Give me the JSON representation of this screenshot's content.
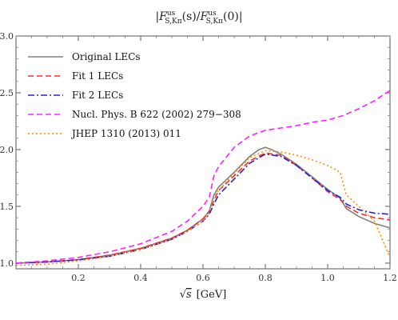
{
  "chart_data": {
    "type": "line",
    "title": "|F^us_{S,Kπ}(s)/F^us_{S,Kπ}(0)|",
    "title_parts": {
      "abs_open": "|",
      "f1_base": "F",
      "f1_sup": "us",
      "f1_sub": "S,Kπ",
      "f1_arg": "(s)/",
      "f2_base": "F",
      "f2_sup": "us",
      "f2_sub": "S,Kπ",
      "f2_arg": "(0)",
      "abs_close": "|"
    },
    "xlabel": "√s [GeV]",
    "xlabel_parts": {
      "sqrt": "√",
      "s": "s",
      "unit": "[GeV]"
    },
    "ylabel": "",
    "xlim": [
      0.0,
      1.2
    ],
    "ylim": [
      0.95,
      3.0
    ],
    "x_ticks": [
      "0.2",
      "0.4",
      "0.6",
      "0.8",
      "1.0",
      "1.2"
    ],
    "y_ticks": [
      "1.0",
      "1.5",
      "2.0",
      "2.5",
      "3.0"
    ],
    "grid": false,
    "legend_position": "top-left",
    "series": [
      {
        "name": "Original LECs",
        "color": "#808080",
        "dash": "solid",
        "x": [
          0.0,
          0.1,
          0.2,
          0.3,
          0.4,
          0.5,
          0.55,
          0.6,
          0.62,
          0.635,
          0.65,
          0.7,
          0.75,
          0.78,
          0.8,
          0.82,
          0.85,
          0.9,
          0.95,
          1.0,
          1.04,
          1.06,
          1.1,
          1.15,
          1.2
        ],
        "y": [
          1.0,
          1.01,
          1.03,
          1.07,
          1.13,
          1.22,
          1.29,
          1.39,
          1.46,
          1.6,
          1.67,
          1.8,
          1.94,
          2.0,
          2.02,
          2.0,
          1.96,
          1.87,
          1.76,
          1.65,
          1.57,
          1.48,
          1.41,
          1.35,
          1.31
        ]
      },
      {
        "name": "Fit 1 LECs",
        "color": "#ff2a2a",
        "dash": "dashed",
        "x": [
          0.0,
          0.1,
          0.2,
          0.3,
          0.4,
          0.5,
          0.55,
          0.6,
          0.62,
          0.635,
          0.65,
          0.7,
          0.75,
          0.8,
          0.85,
          0.9,
          0.95,
          1.0,
          1.04,
          1.06,
          1.1,
          1.15,
          1.2
        ],
        "y": [
          1.0,
          1.01,
          1.03,
          1.07,
          1.13,
          1.22,
          1.29,
          1.39,
          1.45,
          1.55,
          1.64,
          1.77,
          1.9,
          1.97,
          1.95,
          1.86,
          1.75,
          1.63,
          1.56,
          1.5,
          1.44,
          1.4,
          1.38
        ]
      },
      {
        "name": "Fit 2 LECs",
        "color": "#2222e0",
        "dash": "dashdot",
        "x": [
          0.0,
          0.1,
          0.2,
          0.3,
          0.4,
          0.5,
          0.55,
          0.6,
          0.62,
          0.635,
          0.65,
          0.7,
          0.75,
          0.8,
          0.85,
          0.9,
          0.95,
          1.0,
          1.04,
          1.06,
          1.1,
          1.15,
          1.2
        ],
        "y": [
          1.0,
          1.01,
          1.03,
          1.06,
          1.12,
          1.21,
          1.28,
          1.37,
          1.43,
          1.52,
          1.6,
          1.74,
          1.88,
          1.96,
          1.94,
          1.86,
          1.75,
          1.64,
          1.58,
          1.52,
          1.47,
          1.44,
          1.43
        ]
      },
      {
        "name": "Nucl. Phys. B 622 (2002) 279−308",
        "color": "#ff22ff",
        "dash": "dashed",
        "x": [
          0.0,
          0.1,
          0.2,
          0.3,
          0.4,
          0.5,
          0.55,
          0.6,
          0.62,
          0.635,
          0.65,
          0.7,
          0.75,
          0.8,
          0.85,
          0.9,
          0.95,
          1.0,
          1.05,
          1.1,
          1.15,
          1.2
        ],
        "y": [
          1.0,
          1.02,
          1.05,
          1.1,
          1.17,
          1.28,
          1.37,
          1.5,
          1.58,
          1.77,
          1.85,
          2.02,
          2.12,
          2.17,
          2.19,
          2.21,
          2.24,
          2.26,
          2.3,
          2.36,
          2.43,
          2.52
        ]
      },
      {
        "name": "JHEP 1310 (2013) 011",
        "color": "#ff8c00",
        "dash": "dotted",
        "x": [
          0.0,
          0.1,
          0.2,
          0.3,
          0.4,
          0.5,
          0.55,
          0.6,
          0.62,
          0.635,
          0.65,
          0.7,
          0.75,
          0.8,
          0.85,
          0.9,
          0.95,
          1.0,
          1.04,
          1.06,
          1.1,
          1.15,
          1.2
        ],
        "y": [
          0.98,
          0.99,
          1.02,
          1.06,
          1.12,
          1.21,
          1.28,
          1.37,
          1.44,
          1.58,
          1.64,
          1.79,
          1.93,
          1.99,
          1.98,
          1.95,
          1.91,
          1.86,
          1.8,
          1.6,
          1.5,
          1.37,
          1.05
        ]
      }
    ]
  }
}
